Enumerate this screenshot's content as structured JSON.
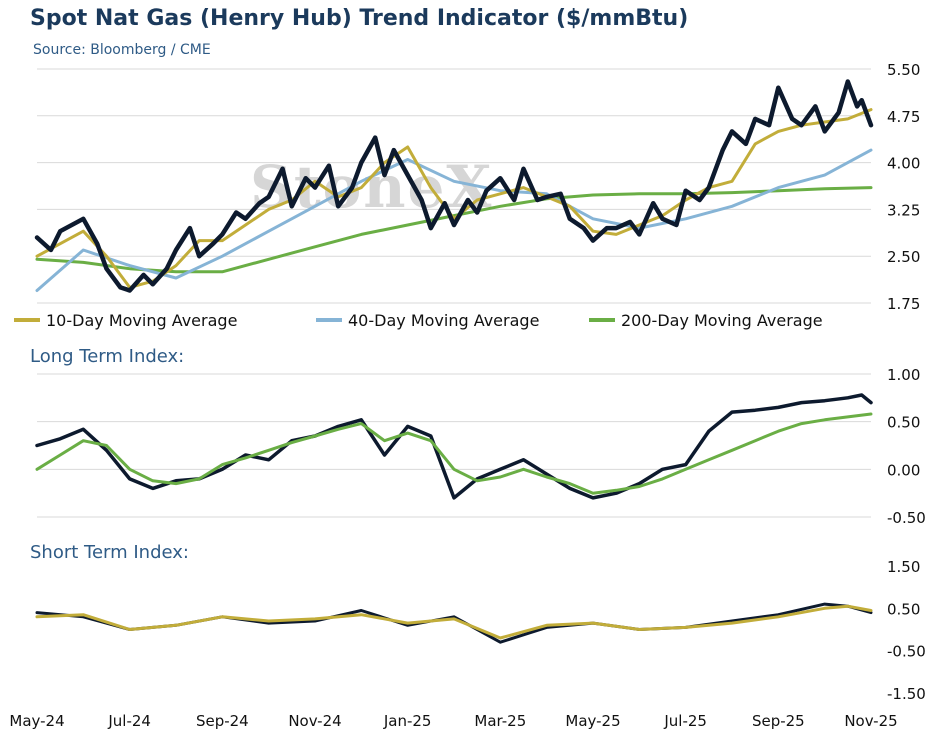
{
  "title": "Spot Nat Gas (Henry Hub) Trend Indicator ($/mmBtu)",
  "source": "Source: Bloomberg / CME",
  "watermark": "StoneX",
  "colors": {
    "price": "#0d1a2e",
    "ma10": "#c2ad3a",
    "ma40": "#86b4d6",
    "ma200": "#6aae45",
    "lt_index": "#0d1a2e",
    "lt_signal": "#6aae45",
    "st_index": "#0d1a2e",
    "st_signal": "#c2ad3a",
    "title": "#1b3a5c",
    "gridline": "#d9d9d9"
  },
  "x_labels": [
    "May-24",
    "Jul-24",
    "Sep-24",
    "Nov-24",
    "Jan-25",
    "Mar-25",
    "May-25",
    "Jul-25",
    "Sep-25",
    "Nov-25"
  ],
  "chart_data": [
    {
      "type": "line",
      "x_range": [
        "May-24",
        "Nov-25"
      ],
      "y_ticks": [
        "5.50",
        "4.75",
        "4.00",
        "3.25",
        "2.50",
        "1.75"
      ],
      "ylim": [
        1.75,
        5.5
      ],
      "grid": true,
      "legend_position": "bottom",
      "legend": [
        "10-Day Moving Average",
        "40-Day Moving Average",
        "200-Day Moving Average"
      ],
      "series": [
        {
          "name": "Spot",
          "color": "#0d1a2e",
          "x": [
            0,
            0.3,
            0.5,
            1,
            1.3,
            1.5,
            1.8,
            2,
            2.3,
            2.5,
            2.8,
            3,
            3.3,
            3.5,
            3.8,
            4,
            4.3,
            4.5,
            4.8,
            5,
            5.3,
            5.5,
            5.8,
            6,
            6.3,
            6.5,
            6.8,
            7,
            7.3,
            7.5,
            7.7,
            8,
            8.3,
            8.5,
            8.8,
            9,
            9.3,
            9.5,
            9.7,
            10,
            10.3,
            10.5,
            10.8,
            11,
            11.3,
            11.5,
            11.8,
            12,
            12.3,
            12.5,
            12.8,
            13,
            13.3,
            13.5,
            13.8,
            14,
            14.3,
            14.5,
            14.8,
            15,
            15.3,
            15.5,
            15.8,
            16,
            16.3,
            16.5,
            16.8,
            17,
            17.3,
            17.5,
            17.7,
            17.8,
            18
          ],
          "values": [
            2.8,
            2.6,
            2.9,
            3.1,
            2.7,
            2.3,
            2.0,
            1.95,
            2.2,
            2.05,
            2.3,
            2.6,
            2.95,
            2.5,
            2.7,
            2.85,
            3.2,
            3.1,
            3.35,
            3.45,
            3.9,
            3.3,
            3.75,
            3.6,
            3.95,
            3.3,
            3.6,
            4.0,
            4.4,
            3.8,
            4.2,
            3.8,
            3.4,
            2.95,
            3.35,
            3.0,
            3.4,
            3.2,
            3.55,
            3.75,
            3.4,
            3.9,
            3.4,
            3.45,
            3.5,
            3.1,
            2.95,
            2.75,
            2.95,
            2.95,
            3.05,
            2.85,
            3.35,
            3.1,
            3.0,
            3.55,
            3.4,
            3.6,
            4.2,
            4.5,
            4.3,
            4.7,
            4.6,
            5.2,
            4.7,
            4.6,
            4.9,
            4.5,
            4.8,
            5.3,
            4.9,
            5.0,
            4.6
          ]
        },
        {
          "name": "10-Day Moving Average",
          "color": "#c2ad3a",
          "x": [
            0,
            0.5,
            1,
            1.5,
            2,
            2.5,
            3,
            3.5,
            4,
            4.5,
            5,
            5.5,
            6,
            6.5,
            7,
            7.5,
            8,
            8.5,
            9,
            9.5,
            10,
            10.5,
            11,
            11.5,
            12,
            12.5,
            13,
            13.5,
            14,
            14.5,
            15,
            15.5,
            16,
            16.5,
            17,
            17.5,
            18
          ],
          "values": [
            2.5,
            2.7,
            2.9,
            2.5,
            2.0,
            2.1,
            2.35,
            2.75,
            2.75,
            3.0,
            3.25,
            3.4,
            3.7,
            3.45,
            3.6,
            4.0,
            4.25,
            3.6,
            3.1,
            3.4,
            3.5,
            3.6,
            3.45,
            3.3,
            2.9,
            2.85,
            3.0,
            3.15,
            3.4,
            3.6,
            3.7,
            4.3,
            4.5,
            4.6,
            4.65,
            4.7,
            4.85
          ]
        },
        {
          "name": "40-Day Moving Average",
          "color": "#86b4d6",
          "x": [
            0,
            1,
            2,
            3,
            4,
            5,
            6,
            7,
            8,
            9,
            10,
            11,
            12,
            13,
            14,
            15,
            16,
            17,
            18
          ],
          "values": [
            1.95,
            2.6,
            2.35,
            2.15,
            2.5,
            2.9,
            3.3,
            3.7,
            4.05,
            3.7,
            3.55,
            3.5,
            3.1,
            2.95,
            3.1,
            3.3,
            3.6,
            3.8,
            4.2
          ]
        },
        {
          "name": "200-Day Moving Average",
          "color": "#6aae45",
          "x": [
            0,
            1,
            2,
            3,
            4,
            5,
            6,
            7,
            8,
            9,
            10,
            11,
            12,
            13,
            14,
            15,
            16,
            17,
            18
          ],
          "values": [
            2.45,
            2.4,
            2.3,
            2.25,
            2.25,
            2.45,
            2.65,
            2.85,
            3.0,
            3.15,
            3.3,
            3.42,
            3.48,
            3.5,
            3.5,
            3.52,
            3.55,
            3.58,
            3.6
          ]
        }
      ]
    },
    {
      "type": "line",
      "title": "Long Term Index:",
      "y_ticks": [
        "1.00",
        "0.50",
        "0.00",
        "-0.50"
      ],
      "ylim": [
        -0.5,
        1.0
      ],
      "grid": true,
      "series": [
        {
          "color": "#0d1a2e",
          "x": [
            0,
            0.5,
            1,
            1.5,
            2,
            2.5,
            3,
            3.5,
            4,
            4.5,
            5,
            5.5,
            6,
            6.5,
            7,
            7.5,
            8,
            8.5,
            9,
            9.5,
            10,
            10.5,
            11,
            11.5,
            12,
            12.5,
            13,
            13.5,
            14,
            14.5,
            15,
            15.5,
            16,
            16.5,
            17,
            17.5,
            17.8,
            18
          ],
          "values": [
            0.25,
            0.32,
            0.42,
            0.2,
            -0.1,
            -0.2,
            -0.12,
            -0.1,
            0.0,
            0.15,
            0.1,
            0.3,
            0.35,
            0.45,
            0.52,
            0.15,
            0.45,
            0.35,
            -0.3,
            -0.1,
            0.0,
            0.1,
            -0.05,
            -0.2,
            -0.3,
            -0.25,
            -0.15,
            0.0,
            0.05,
            0.4,
            0.6,
            0.62,
            0.65,
            0.7,
            0.72,
            0.75,
            0.78,
            0.7
          ]
        },
        {
          "color": "#6aae45",
          "x": [
            0,
            0.5,
            1,
            1.5,
            2,
            2.5,
            3,
            3.5,
            4,
            4.5,
            5,
            5.5,
            6,
            6.5,
            7,
            7.5,
            8,
            8.5,
            9,
            9.5,
            10,
            10.5,
            11,
            11.5,
            12,
            12.5,
            13,
            13.5,
            14,
            14.5,
            15,
            15.5,
            16,
            16.5,
            17,
            17.5,
            18
          ],
          "values": [
            0.0,
            0.15,
            0.3,
            0.25,
            0.0,
            -0.12,
            -0.15,
            -0.1,
            0.05,
            0.12,
            0.2,
            0.28,
            0.35,
            0.42,
            0.48,
            0.3,
            0.38,
            0.3,
            0.0,
            -0.12,
            -0.08,
            0.0,
            -0.08,
            -0.15,
            -0.25,
            -0.22,
            -0.18,
            -0.1,
            0.0,
            0.1,
            0.2,
            0.3,
            0.4,
            0.48,
            0.52,
            0.55,
            0.58
          ]
        }
      ]
    },
    {
      "type": "line",
      "title": "Short Term Index:",
      "y_ticks": [
        "1.50",
        "0.50",
        "-0.50",
        "-1.50"
      ],
      "ylim": [
        -1.5,
        1.5
      ],
      "grid": false,
      "series": [
        {
          "color": "#0d1a2e",
          "x": [
            0,
            1,
            2,
            3,
            4,
            5,
            6,
            7,
            8,
            9,
            10,
            11,
            12,
            13,
            14,
            15,
            16,
            17,
            17.5,
            18
          ],
          "values": [
            0.4,
            0.3,
            0.0,
            0.1,
            0.3,
            0.15,
            0.2,
            0.45,
            0.1,
            0.3,
            -0.3,
            0.05,
            0.15,
            0.0,
            0.05,
            0.2,
            0.35,
            0.6,
            0.55,
            0.4
          ]
        },
        {
          "color": "#c2ad3a",
          "x": [
            0,
            1,
            2,
            3,
            4,
            5,
            6,
            7,
            8,
            9,
            10,
            11,
            12,
            13,
            14,
            15,
            16,
            17,
            17.5,
            18
          ],
          "values": [
            0.3,
            0.35,
            0.0,
            0.1,
            0.3,
            0.2,
            0.25,
            0.35,
            0.15,
            0.25,
            -0.2,
            0.1,
            0.15,
            0.0,
            0.05,
            0.15,
            0.3,
            0.5,
            0.55,
            0.45
          ]
        }
      ]
    }
  ]
}
